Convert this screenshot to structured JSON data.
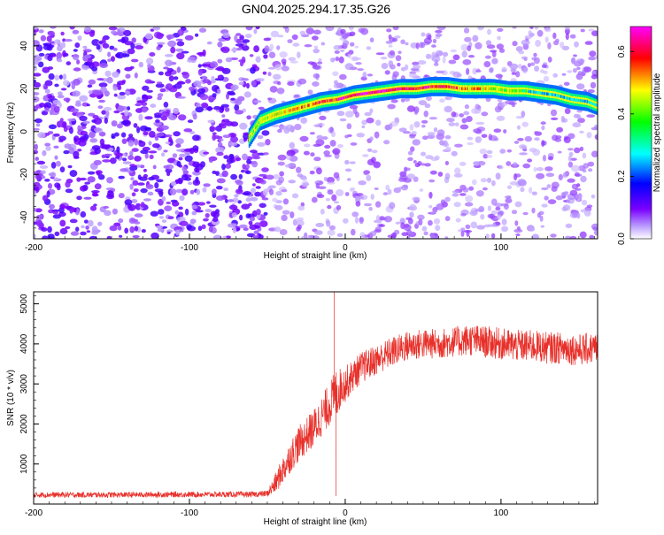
{
  "title": "GN04.2025.294.17.35.G26",
  "chart_data": [
    {
      "type": "heatmap",
      "xlabel": "Height of straight line (km)",
      "ylabel": "Frequency (Hz)",
      "xlim": [
        -200,
        162
      ],
      "ylim": [
        -50,
        49
      ],
      "x_ticks": [
        -200,
        -100,
        0,
        100
      ],
      "y_ticks": [
        -40,
        -20,
        0,
        20,
        40
      ],
      "colorbar": {
        "label": "Normalized spectral amplitude",
        "range": [
          0.0,
          0.68
        ],
        "ticks": [
          0.0,
          0.2,
          0.4,
          0.6
        ]
      },
      "colormap": [
        "#ffffff",
        "#7a00ff",
        "#0000ff",
        "#00ffff",
        "#00ff00",
        "#ffff00",
        "#ff0000",
        "#ff00ff"
      ],
      "ridge": {
        "x": [
          -62,
          -55,
          -45,
          -35,
          -25,
          -15,
          -5,
          5,
          15,
          25,
          35,
          45,
          55,
          65,
          75,
          85,
          95,
          105,
          115,
          125,
          135,
          145,
          155,
          162
        ],
        "y": [
          -3,
          5,
          8,
          10,
          12,
          14,
          15,
          17,
          18,
          19,
          20,
          20,
          21,
          21,
          20,
          20,
          20,
          19,
          19,
          18,
          17,
          15,
          14,
          12
        ]
      },
      "background_noise_regions": [
        {
          "x_from": -200,
          "x_to": -50,
          "level": 0.12
        },
        {
          "x_from": -50,
          "x_to": 162,
          "level": 0.04
        }
      ]
    },
    {
      "type": "line",
      "xlabel": "Height of straight line (km)",
      "ylabel": "SNR (10 * v/v)",
      "xlim": [
        -200,
        162
      ],
      "ylim": [
        0,
        5300
      ],
      "x_ticks": [
        -200,
        -100,
        0,
        100
      ],
      "y_ticks": [
        1000,
        2000,
        3000,
        4000,
        5000
      ],
      "series": [
        {
          "color": "#e8302a",
          "x": [
            -200,
            -150,
            -100,
            -60,
            -50,
            -45,
            -40,
            -35,
            -30,
            -25,
            -20,
            -15,
            -10,
            -7,
            -5,
            -3,
            0,
            5,
            10,
            20,
            30,
            40,
            50,
            60,
            70,
            80,
            90,
            100,
            110,
            120,
            130,
            140,
            150,
            162
          ],
          "y": [
            230,
            230,
            240,
            240,
            260,
            500,
            850,
            1200,
            1500,
            1700,
            1900,
            2200,
            2500,
            2700,
            2800,
            2900,
            3000,
            3200,
            3400,
            3600,
            3800,
            3950,
            4000,
            4000,
            4050,
            4100,
            4050,
            4000,
            3950,
            3950,
            3900,
            3900,
            3850,
            3900
          ],
          "noise_amplitude": [
            70,
            70,
            70,
            70,
            80,
            250,
            350,
            400,
            450,
            450,
            500,
            500,
            550,
            600,
            650,
            500,
            450,
            400,
            400,
            380,
            380,
            380,
            380,
            380,
            380,
            400,
            400,
            400,
            400,
            400,
            400,
            400,
            400,
            400
          ]
        }
      ],
      "spikes": [
        {
          "x": -7,
          "y": 5300
        },
        {
          "x": -6,
          "y": 200
        }
      ]
    }
  ]
}
